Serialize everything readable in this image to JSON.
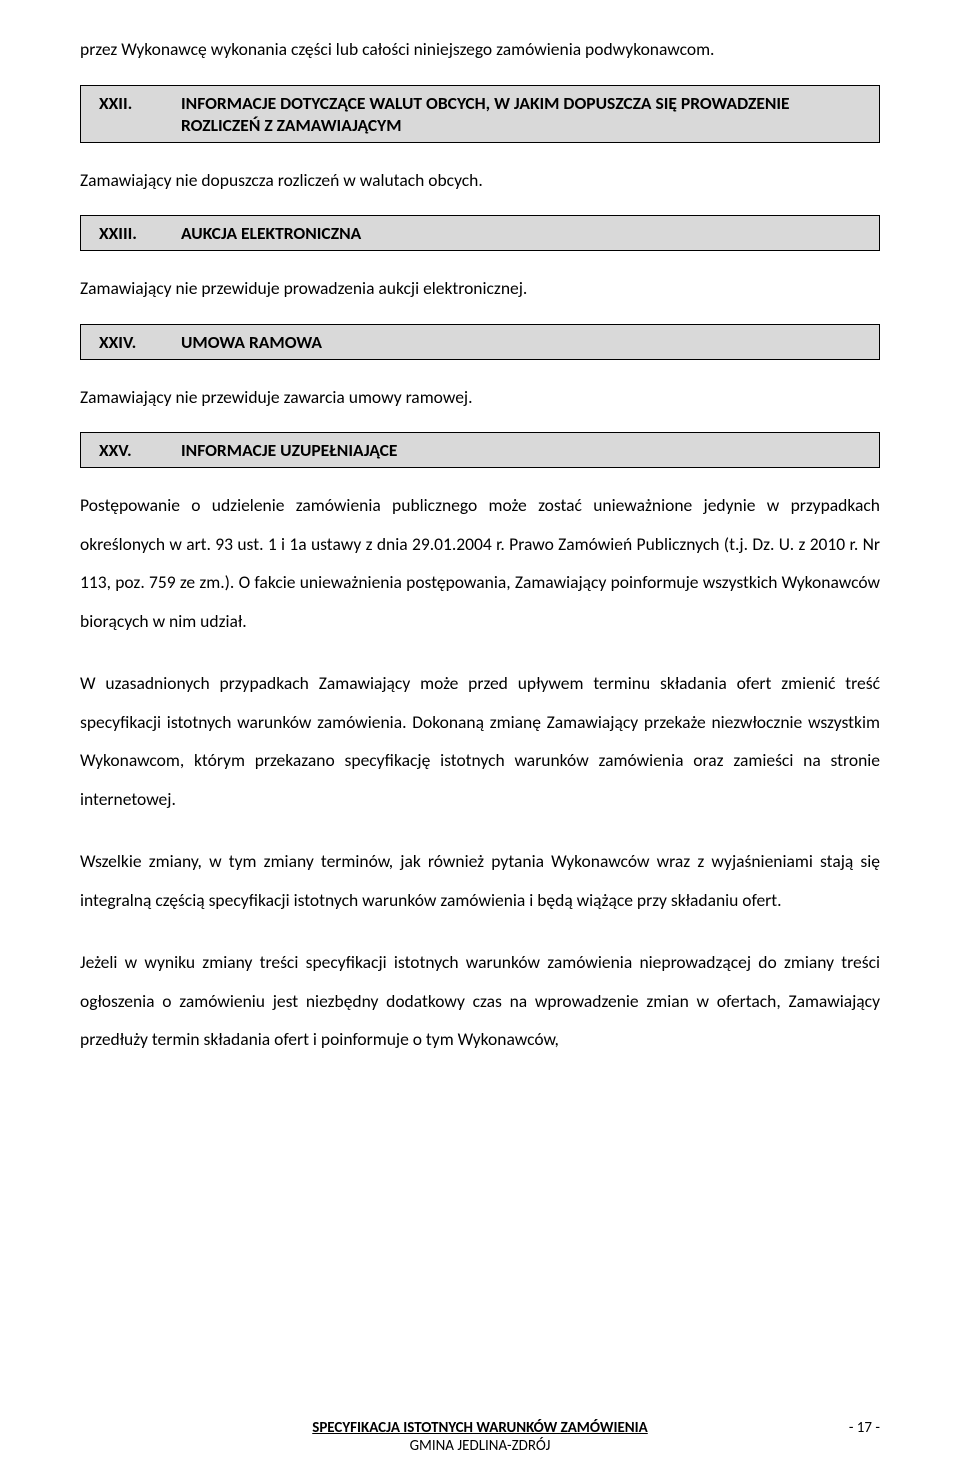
{
  "intro_text": "przez Wykonawcę wykonania części lub całości niniejszego zamówienia podwykonawcom.",
  "sections": {
    "s22": {
      "num": "XXII.",
      "title": "INFORMACJE DOTYCZĄCE WALUT OBCYCH, W JAKIM DOPUSZCZA SIĘ PROWADZENIE ROZLICZEŃ Z ZAMAWIAJĄCYM",
      "body": "Zamawiający nie dopuszcza rozliczeń w walutach obcych."
    },
    "s23": {
      "num": "XXIII.",
      "title": "AUKCJA ELEKTRONICZNA",
      "body": "Zamawiający nie przewiduje prowadzenia aukcji elektronicznej."
    },
    "s24": {
      "num": "XXIV.",
      "title": "UMOWA RAMOWA",
      "body": "Zamawiający nie przewiduje zawarcia umowy ramowej."
    },
    "s25": {
      "num": "XXV.",
      "title": "INFORMACJE UZUPEŁNIAJĄCE",
      "p1": "Postępowanie o udzielenie zamówienia publicznego może zostać unieważnione jedynie w przypadkach określonych w art. 93 ust. 1 i 1a ustawy z dnia 29.01.2004 r. Prawo Zamówień Publicznych (t.j. Dz. U. z 2010 r. Nr 113, poz. 759 ze zm.). O fakcie unieważnienia postępowania, Zamawiający poinformuje wszystkich Wykonawców biorących w nim udział.",
      "p2": "W uzasadnionych przypadkach Zamawiający może przed upływem terminu składania ofert zmienić treść specyfikacji istotnych warunków zamówienia. Dokonaną zmianę Zamawiający przekaże niezwłocznie wszystkim Wykonawcom, którym przekazano specyfikację istotnych warunków zamówienia oraz zamieści na stronie internetowej.",
      "p3": "Wszelkie zmiany, w tym zmiany terminów, jak również pytania Wykonawców wraz z wyjaśnieniami stają się integralną częścią specyfikacji istotnych warunków zamówienia i będą wiążące przy składaniu ofert.",
      "p4": "Jeżeli  w  wyniku  zmiany  treści  specyfikacji  istotnych  warunków  zamówienia  nieprowadzącej do zmiany treści ogłoszenia o zamówieniu   jest niezbędny dodatkowy czas na wprowadzenie   zmian   w ofertach,  Zamawiający  przedłuży  termin   składania   ofert   i   poinformuje o tym   Wykonawców,"
    }
  },
  "footer": {
    "title": "SPECYFIKACJA ISTOTNYCH WARUNKÓW ZAMÓWIENIA",
    "sub": "GMINA JEDLINA-ZDRÓJ",
    "page": "- 17 -"
  },
  "colors": {
    "section_bg": "#d9d9d9",
    "border": "#000000",
    "text": "#000000",
    "page_bg": "#ffffff"
  }
}
